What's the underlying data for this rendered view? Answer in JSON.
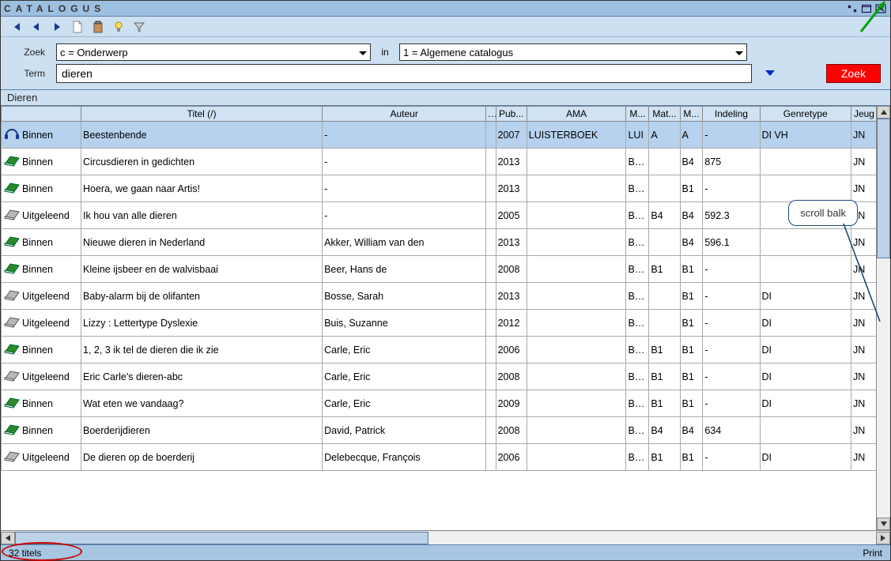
{
  "window": {
    "title": "CATALOGUS"
  },
  "toolbar_icons": [
    "first",
    "prev",
    "next",
    "new-doc",
    "paste",
    "bulb",
    "filter"
  ],
  "search": {
    "zoek_label": "Zoek",
    "zoek_combo": "c = Onderwerp",
    "in_label": "in",
    "in_combo": "1 = Algemene catalogus",
    "term_label": "Term",
    "term_value": "dieren",
    "zoek_button": "Zoek"
  },
  "breadcrumb": "Dieren",
  "columns": [
    {
      "key": "status",
      "label": ""
    },
    {
      "key": "titel",
      "label": "Titel (/)"
    },
    {
      "key": "auteur",
      "label": "Auteur"
    },
    {
      "key": "dots",
      "label": "..."
    },
    {
      "key": "pub",
      "label": "Pub..."
    },
    {
      "key": "ama",
      "label": "AMA"
    },
    {
      "key": "m1",
      "label": "M..."
    },
    {
      "key": "mat",
      "label": "Mat..."
    },
    {
      "key": "m2",
      "label": "M..."
    },
    {
      "key": "indeling",
      "label": "Indeling"
    },
    {
      "key": "genre",
      "label": "Genretype"
    },
    {
      "key": "jeug",
      "label": "Jeug"
    }
  ],
  "rows": [
    {
      "icon": "headphones",
      "status": "Binnen",
      "titel": "Beestenbende",
      "auteur": "-",
      "dots": "",
      "pub": "2007",
      "ama": "LUISTERBOEK",
      "m1": "LUI",
      "mat": "A",
      "m2": "A",
      "indeling": "-",
      "genre": "DI VH",
      "jeug": "JN",
      "selected": true
    },
    {
      "icon": "book-green",
      "status": "Binnen",
      "titel": "Circusdieren in gedichten",
      "auteur": "-",
      "dots": "",
      "pub": "2013",
      "ama": "",
      "m1": "BOE",
      "mat": "",
      "m2": "B4",
      "indeling": "875",
      "genre": "",
      "jeug": "JN"
    },
    {
      "icon": "book-green",
      "status": "Binnen",
      "titel": "Hoera, we gaan naar Artis!",
      "auteur": "-",
      "dots": "",
      "pub": "2013",
      "ama": "",
      "m1": "BOE",
      "mat": "",
      "m2": "B1",
      "indeling": "-",
      "genre": "",
      "jeug": "JN"
    },
    {
      "icon": "book-grey",
      "status": "Uitgeleend",
      "titel": "Ik hou van alle dieren",
      "auteur": "-",
      "dots": "",
      "pub": "2005",
      "ama": "",
      "m1": "BOE",
      "mat": "B4",
      "m2": "B4",
      "indeling": "592.3",
      "genre": "",
      "jeug": "JN"
    },
    {
      "icon": "book-green",
      "status": "Binnen",
      "titel": "Nieuwe dieren in Nederland",
      "auteur": "Akker, William van den",
      "dots": "",
      "pub": "2013",
      "ama": "",
      "m1": "BOE",
      "mat": "",
      "m2": "B4",
      "indeling": "596.1",
      "genre": "",
      "jeug": "JN"
    },
    {
      "icon": "book-green",
      "status": "Binnen",
      "titel": "Kleine ijsbeer en de walvisbaai",
      "auteur": "Beer, Hans de",
      "dots": "",
      "pub": "2008",
      "ama": "",
      "m1": "BOE",
      "mat": "B1",
      "m2": "B1",
      "indeling": "-",
      "genre": "",
      "jeug": "JN"
    },
    {
      "icon": "book-grey",
      "status": "Uitgeleend",
      "titel": "Baby-alarm bij de olifanten",
      "auteur": "Bosse, Sarah",
      "dots": "",
      "pub": "2013",
      "ama": "",
      "m1": "BOE",
      "mat": "",
      "m2": "B1",
      "indeling": "-",
      "genre": "DI",
      "jeug": "JN"
    },
    {
      "icon": "book-grey",
      "status": "Uitgeleend",
      "titel": "Lizzy : Lettertype Dyslexie",
      "auteur": "Buis, Suzanne",
      "dots": "",
      "pub": "2012",
      "ama": "",
      "m1": "BOE",
      "mat": "",
      "m2": "B1",
      "indeling": "-",
      "genre": "DI",
      "jeug": "JN"
    },
    {
      "icon": "book-green",
      "status": "Binnen",
      "titel": "1, 2, 3 ik tel de dieren die ik zie",
      "auteur": "Carle, Eric",
      "dots": "",
      "pub": "2006",
      "ama": "",
      "m1": "BOE",
      "mat": "B1",
      "m2": "B1",
      "indeling": "-",
      "genre": "DI",
      "jeug": "JN"
    },
    {
      "icon": "book-grey",
      "status": "Uitgeleend",
      "titel": "Eric Carle's dieren-abc",
      "auteur": "Carle, Eric",
      "dots": "",
      "pub": "2008",
      "ama": "",
      "m1": "BOE",
      "mat": "B1",
      "m2": "B1",
      "indeling": "-",
      "genre": "DI",
      "jeug": "JN"
    },
    {
      "icon": "book-green",
      "status": "Binnen",
      "titel": "Wat eten we vandaag?",
      "auteur": "Carle, Eric",
      "dots": "",
      "pub": "2009",
      "ama": "",
      "m1": "BOE",
      "mat": "B1",
      "m2": "B1",
      "indeling": "-",
      "genre": "DI",
      "jeug": "JN"
    },
    {
      "icon": "book-green",
      "status": "Binnen",
      "titel": "Boerderijdieren",
      "auteur": "David, Patrick",
      "dots": "",
      "pub": "2008",
      "ama": "",
      "m1": "BOE",
      "mat": "B4",
      "m2": "B4",
      "indeling": "634",
      "genre": "",
      "jeug": "JN"
    },
    {
      "icon": "book-grey",
      "status": "Uitgeleend",
      "titel": "De dieren op de boerderij",
      "auteur": "Delebecque, François",
      "dots": "",
      "pub": "2006",
      "ama": "",
      "m1": "BOE",
      "mat": "B1",
      "m2": "B1",
      "indeling": "-",
      "genre": "DI",
      "jeug": "JN"
    }
  ],
  "statusbar": {
    "count": "32 titels",
    "print": "Print"
  },
  "annotations": {
    "callout_text": "scroll balk"
  },
  "colors": {
    "titlebar_bg": "#9dbfe0",
    "toolbar_bg": "#cde0f2",
    "panel_bg": "#cde0f2",
    "header_bg": "#d0e2f3",
    "selected_bg": "#b6d2ee",
    "zoek_btn_bg": "#ff0000",
    "statusbar_bg": "#a8c6e2",
    "annot_red": "#cc0000",
    "annot_green": "#00a000",
    "annot_blue": "#1a4a7a"
  }
}
